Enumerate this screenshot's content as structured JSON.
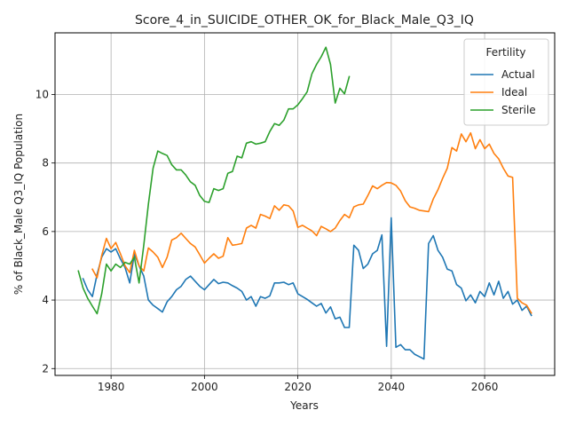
{
  "chart_data": {
    "type": "line",
    "title": "Score_4_in_SUICIDE_OTHER_OK_for_Black_Male_Q3_IQ",
    "xlabel": "Years",
    "ylabel": "% of Black_Male Q3_IQ Population",
    "xlim": [
      1968,
      2075
    ],
    "ylim": [
      1.8,
      11.8
    ],
    "xticks": [
      1980,
      2000,
      2020,
      2040,
      2060
    ],
    "yticks": [
      2,
      4,
      6,
      8,
      10
    ],
    "grid": true,
    "legend": {
      "title": "Fertility",
      "placement": "top-right"
    },
    "series": [
      {
        "name": "Actual",
        "color": "#1f77b4",
        "x": [
          1974,
          1975,
          1976,
          1977,
          1978,
          1979,
          1980,
          1981,
          1982,
          1983,
          1984,
          1985,
          1986,
          1987,
          1988,
          1989,
          1990,
          1991,
          1992,
          1993,
          1994,
          1995,
          1996,
          1997,
          1998,
          1999,
          2000,
          2001,
          2002,
          2003,
          2004,
          2005,
          2006,
          2007,
          2008,
          2009,
          2010,
          2011,
          2012,
          2013,
          2014,
          2015,
          2016,
          2017,
          2018,
          2019,
          2020,
          2021,
          2022,
          2023,
          2024,
          2025,
          2026,
          2027,
          2028,
          2029,
          2030,
          2031,
          2032,
          2033,
          2034,
          2035,
          2036,
          2037,
          2038,
          2039,
          2040,
          2041,
          2042,
          2043,
          2044,
          2045,
          2046,
          2047,
          2048,
          2049,
          2050,
          2051,
          2052,
          2053,
          2054,
          2055,
          2056,
          2057,
          2058,
          2059,
          2060,
          2061,
          2062,
          2063,
          2064,
          2065,
          2066,
          2067,
          2068,
          2069,
          2070
        ],
        "values": [
          4.62,
          4.3,
          4.1,
          4.75,
          5.25,
          5.5,
          5.4,
          5.5,
          5.2,
          4.95,
          4.5,
          5.35,
          5.0,
          4.7,
          4.0,
          3.85,
          3.75,
          3.65,
          3.95,
          4.1,
          4.3,
          4.4,
          4.6,
          4.7,
          4.55,
          4.4,
          4.3,
          4.45,
          4.6,
          4.48,
          4.52,
          4.5,
          4.42,
          4.35,
          4.25,
          4.0,
          4.1,
          3.82,
          4.1,
          4.05,
          4.12,
          4.5,
          4.5,
          4.52,
          4.45,
          4.5,
          4.18,
          4.1,
          4.02,
          3.92,
          3.82,
          3.9,
          3.62,
          3.8,
          3.45,
          3.5,
          3.2,
          3.2,
          5.6,
          5.45,
          4.92,
          5.05,
          5.35,
          5.45,
          5.9,
          2.65,
          6.4,
          2.62,
          2.7,
          2.55,
          2.55,
          2.42,
          2.35,
          2.28,
          5.65,
          5.88,
          5.45,
          5.25,
          4.9,
          4.85,
          4.45,
          4.35,
          3.98,
          4.15,
          3.92,
          4.25,
          4.1,
          4.5,
          4.15,
          4.55,
          4.05,
          4.25,
          3.88,
          4.0,
          3.7,
          3.82,
          3.55
        ]
      },
      {
        "name": "Ideal",
        "color": "#ff7f0e",
        "x": [
          1976,
          1977,
          1978,
          1979,
          1980,
          1981,
          1982,
          1983,
          1984,
          1985,
          1986,
          1987,
          1988,
          1989,
          1990,
          1991,
          1992,
          1993,
          1994,
          1995,
          1996,
          1997,
          1998,
          1999,
          2000,
          2001,
          2002,
          2003,
          2004,
          2005,
          2006,
          2007,
          2008,
          2009,
          2010,
          2011,
          2012,
          2013,
          2014,
          2015,
          2016,
          2017,
          2018,
          2019,
          2020,
          2021,
          2022,
          2023,
          2024,
          2025,
          2026,
          2027,
          2028,
          2029,
          2030,
          2031,
          2032,
          2033,
          2034,
          2035,
          2036,
          2037,
          2038,
          2039,
          2040,
          2041,
          2042,
          2043,
          2044,
          2045,
          2046,
          2047,
          2048,
          2049,
          2050,
          2051,
          2052,
          2053,
          2054,
          2055,
          2056,
          2057,
          2058,
          2059,
          2060,
          2061,
          2062,
          2063,
          2064,
          2065,
          2066,
          2067,
          2068,
          2069,
          2070
        ],
        "values": [
          4.9,
          4.65,
          5.3,
          5.8,
          5.5,
          5.68,
          5.35,
          5.0,
          4.8,
          5.45,
          5.0,
          4.85,
          5.52,
          5.4,
          5.25,
          4.95,
          5.25,
          5.75,
          5.82,
          5.95,
          5.8,
          5.65,
          5.55,
          5.32,
          5.08,
          5.22,
          5.35,
          5.22,
          5.28,
          5.82,
          5.6,
          5.62,
          5.65,
          6.1,
          6.18,
          6.1,
          6.5,
          6.45,
          6.38,
          6.75,
          6.62,
          6.78,
          6.75,
          6.6,
          6.12,
          6.18,
          6.1,
          6.02,
          5.88,
          6.15,
          6.08,
          6.0,
          6.1,
          6.32,
          6.5,
          6.4,
          6.72,
          6.78,
          6.8,
          7.05,
          7.33,
          7.25,
          7.35,
          7.43,
          7.42,
          7.35,
          7.18,
          6.9,
          6.72,
          6.68,
          6.62,
          6.6,
          6.58,
          6.95,
          7.22,
          7.55,
          7.85,
          8.45,
          8.35,
          8.85,
          8.62,
          8.88,
          8.42,
          8.68,
          8.42,
          8.55,
          8.28,
          8.12,
          7.85,
          7.62,
          7.58,
          4.05,
          3.92,
          3.85,
          3.62
        ]
      },
      {
        "name": "Sterile",
        "color": "#2ca02c",
        "x": [
          1973,
          1974,
          1975,
          1976,
          1977,
          1978,
          1979,
          1980,
          1981,
          1982,
          1983,
          1984,
          1985,
          1986,
          1987,
          1988,
          1989,
          1990,
          1991,
          1992,
          1993,
          1994,
          1995,
          1996,
          1997,
          1998,
          1999,
          2000,
          2001,
          2002,
          2003,
          2004,
          2005,
          2006,
          2007,
          2008,
          2009,
          2010,
          2011,
          2012,
          2013,
          2014,
          2015,
          2016,
          2017,
          2018,
          2019,
          2020,
          2021,
          2022,
          2023,
          2024,
          2025,
          2026,
          2027,
          2028,
          2029,
          2030,
          2031
        ],
        "values": [
          4.85,
          4.35,
          4.05,
          3.82,
          3.6,
          4.18,
          5.05,
          4.85,
          5.05,
          4.95,
          5.1,
          5.05,
          5.25,
          4.5,
          5.6,
          6.8,
          7.85,
          8.35,
          8.28,
          8.22,
          7.95,
          7.8,
          7.8,
          7.65,
          7.45,
          7.35,
          7.05,
          6.88,
          6.85,
          7.25,
          7.2,
          7.25,
          7.7,
          7.75,
          8.2,
          8.15,
          8.58,
          8.62,
          8.55,
          8.58,
          8.62,
          8.92,
          9.15,
          9.1,
          9.25,
          9.58,
          9.58,
          9.7,
          9.88,
          10.08,
          10.6,
          10.88,
          11.1,
          11.38,
          10.88,
          9.75,
          10.18,
          10.02,
          10.52
        ]
      }
    ]
  }
}
